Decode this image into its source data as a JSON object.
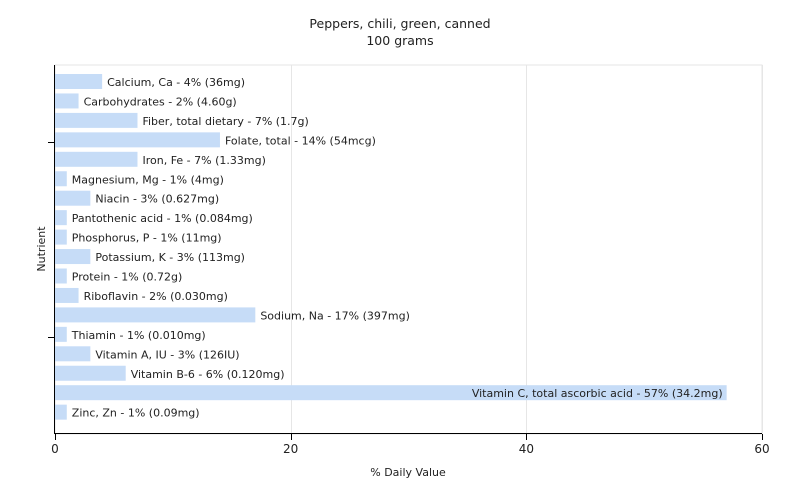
{
  "chart_data": {
    "type": "bar",
    "orientation": "horizontal",
    "title": "Peppers, chili, green, canned",
    "subtitle": "100 grams",
    "xlabel": "% Daily Value",
    "ylabel": "Nutrient",
    "xlim": [
      0,
      60
    ],
    "xticks": [
      0,
      20,
      40,
      60
    ],
    "grid": "vertical",
    "bar_color": "#c6dcf7",
    "categories": [
      "Calcium, Ca",
      "Carbohydrates",
      "Fiber, total dietary",
      "Folate, total",
      "Iron, Fe",
      "Magnesium, Mg",
      "Niacin",
      "Pantothenic acid",
      "Phosphorus, P",
      "Potassium, K",
      "Protein",
      "Riboflavin",
      "Sodium, Na",
      "Thiamin",
      "Vitamin A, IU",
      "Vitamin B-6",
      "Vitamin C, total ascorbic acid",
      "Zinc, Zn"
    ],
    "values": [
      4,
      2,
      7,
      14,
      7,
      1,
      3,
      1,
      1,
      3,
      1,
      2,
      17,
      1,
      3,
      6,
      57,
      1
    ],
    "labels": [
      "Calcium, Ca - 4% (36mg)",
      "Carbohydrates - 2% (4.60g)",
      "Fiber, total dietary - 7% (1.7g)",
      "Folate, total - 14% (54mcg)",
      "Iron, Fe - 7% (1.33mg)",
      "Magnesium, Mg - 1% (4mg)",
      "Niacin - 3% (0.627mg)",
      "Pantothenic acid - 1% (0.084mg)",
      "Phosphorus, P - 1% (11mg)",
      "Potassium, K - 3% (113mg)",
      "Protein - 1% (0.72g)",
      "Riboflavin - 2% (0.030mg)",
      "Sodium, Na - 17% (397mg)",
      "Thiamin - 1% (0.010mg)",
      "Vitamin A, IU - 3% (126IU)",
      "Vitamin B-6 - 6% (0.120mg)",
      "Vitamin C, total ascorbic acid - 57% (34.2mg)",
      "Zinc, Zn - 1% (0.09mg)"
    ]
  }
}
